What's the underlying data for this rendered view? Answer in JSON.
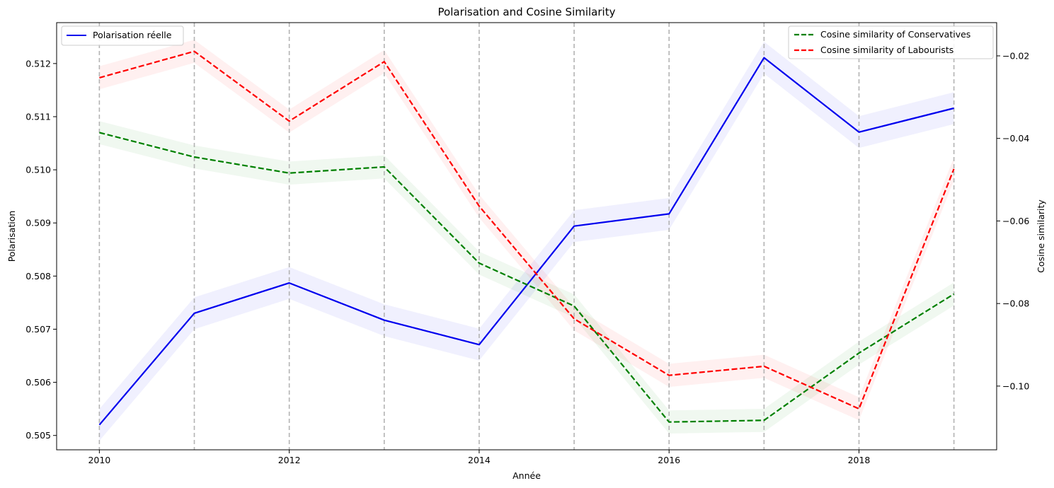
{
  "chart_data": {
    "type": "line",
    "title": "Polarisation and Cosine Similarity",
    "xlabel": "Année",
    "ylabel_left": "Polarisation",
    "ylabel_right": "Cosine similarity",
    "x": [
      2010,
      2011,
      2012,
      2013,
      2014,
      2015,
      2016,
      2017,
      2018,
      2019
    ],
    "xlim": [
      2009.55,
      2019.45
    ],
    "xticks": [
      2010,
      2012,
      2014,
      2016,
      2018
    ],
    "vlines": [
      2010,
      2011,
      2012,
      2013,
      2014,
      2015,
      2016,
      2017,
      2018,
      2019
    ],
    "ylim_left": [
      0.50473,
      0.51277
    ],
    "yticks_left": [
      "0.505",
      "0.506",
      "0.507",
      "0.508",
      "0.509",
      "0.510",
      "0.511",
      "0.512"
    ],
    "ylim_right": [
      -0.11544,
      -0.01195
    ],
    "yticks_right": [
      "−0.10",
      "−0.08",
      "−0.06",
      "−0.04",
      "−0.02"
    ],
    "series": [
      {
        "name": "Polarisation réelle",
        "axis": "left",
        "color": "#0000ee",
        "style": "solid",
        "values": [
          0.5052,
          0.5073,
          0.50787,
          0.50717,
          0.50671,
          0.50894,
          0.50917,
          0.51211,
          0.51071,
          0.51116
        ],
        "band": 0.0003
      },
      {
        "name": "Cosine similarity of Conservatives",
        "axis": "right",
        "color": "#008000",
        "style": "dashed",
        "values": [
          -0.0386,
          -0.0445,
          -0.0484,
          -0.0469,
          -0.0702,
          -0.0806,
          -0.1087,
          -0.1083,
          -0.092,
          -0.0777
        ],
        "band": 0.0028
      },
      {
        "name": "Cosine similarity of Labourists",
        "axis": "right",
        "color": "#ff0000",
        "style": "dashed",
        "values": [
          -0.0253,
          -0.0189,
          -0.0358,
          -0.0214,
          -0.0564,
          -0.0837,
          -0.0974,
          -0.0952,
          -0.1055,
          -0.0474
        ],
        "band": 0.0028
      }
    ],
    "legends": [
      {
        "placement": "upper left",
        "entries": [
          "Polarisation réelle"
        ]
      },
      {
        "placement": "upper right",
        "entries": [
          "Cosine similarity of Conservatives",
          "Cosine similarity of Labourists"
        ]
      }
    ],
    "grid": false
  }
}
